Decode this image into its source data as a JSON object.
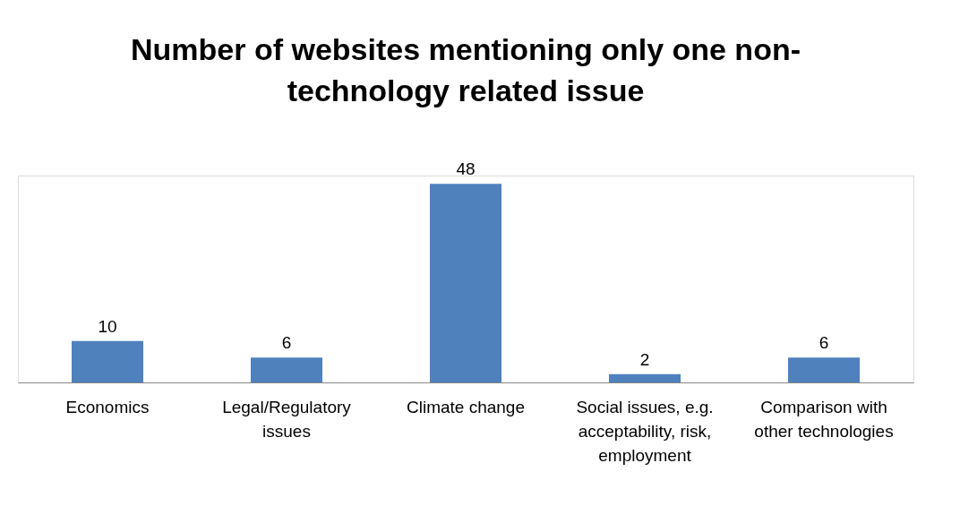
{
  "chart_data": {
    "type": "bar",
    "title": "Number of websites mentioning only one non-technology related issue",
    "categories": [
      "Economics",
      "Legal/Regulatory issues",
      "Climate change",
      "Social issues, e.g. acceptability, risk, employment",
      "Comparison with other technologies"
    ],
    "values": [
      10,
      6,
      48,
      2,
      6
    ],
    "color": "#4f81bd",
    "data_labels": true
  }
}
